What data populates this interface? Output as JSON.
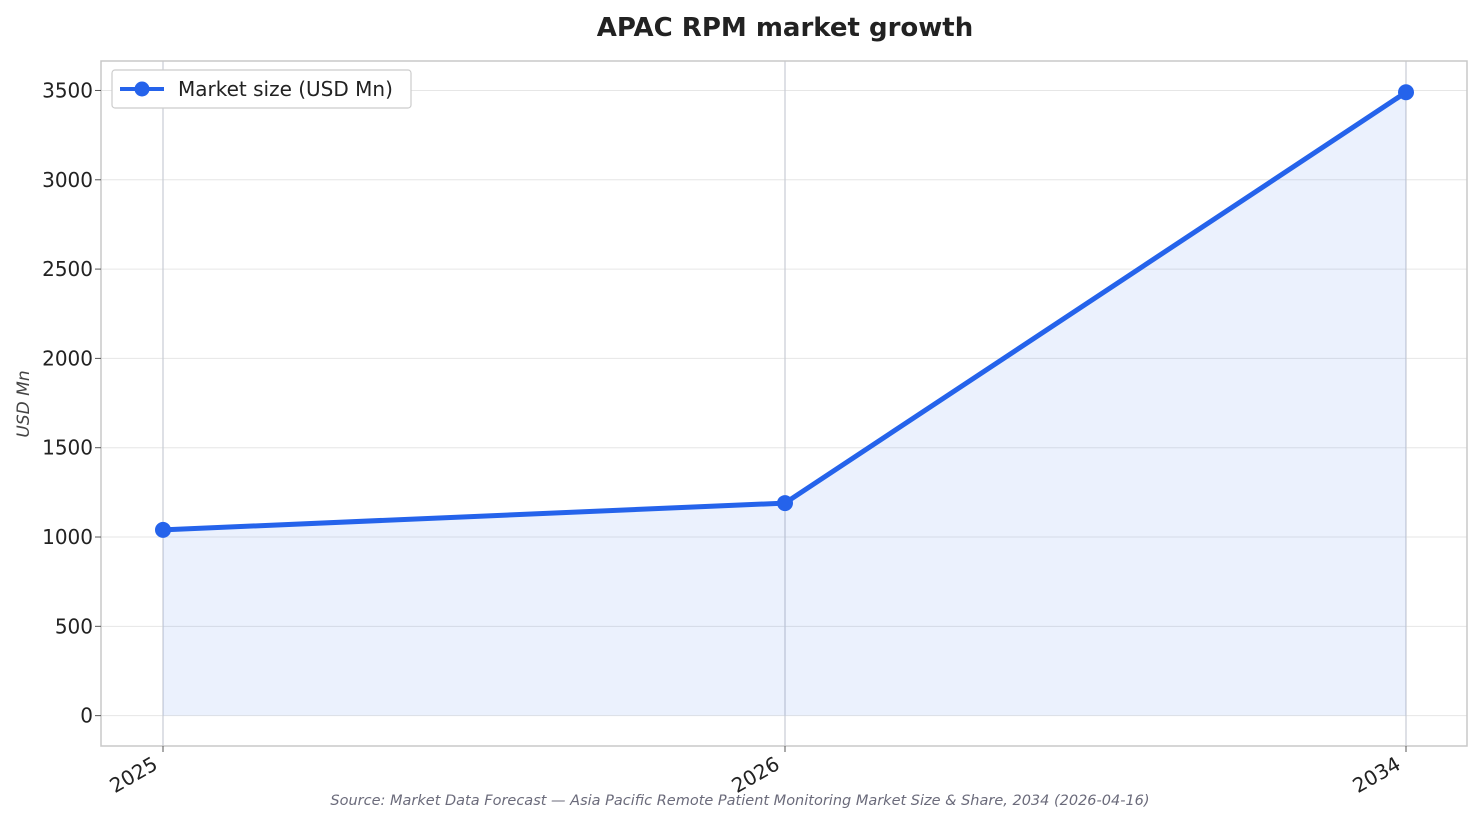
{
  "chart_data": {
    "type": "line",
    "title": "APAC RPM market growth",
    "xlabel": "",
    "ylabel": "USD Mn",
    "categories": [
      "2025",
      "2026",
      "2034"
    ],
    "series": [
      {
        "name": "Market size (USD Mn)",
        "values": [
          1040,
          1190,
          3490
        ]
      }
    ],
    "ylim": [
      -170,
      3665
    ],
    "yticks": [
      0,
      500,
      1000,
      1500,
      2000,
      2500,
      3000,
      3500
    ],
    "grid": true,
    "area_fill": true,
    "legend_position": "top-left",
    "source": "Source: Market Data Forecast — Asia Pacific Remote Patient Monitoring Market Size & Share, 2034 (2026-04-16)"
  },
  "colors": {
    "line": "#2563eb",
    "fill": "#2563eb",
    "grid": "#e6e6e6",
    "frame": "#c8c8c8",
    "vgrid": "#c8ccd4"
  }
}
